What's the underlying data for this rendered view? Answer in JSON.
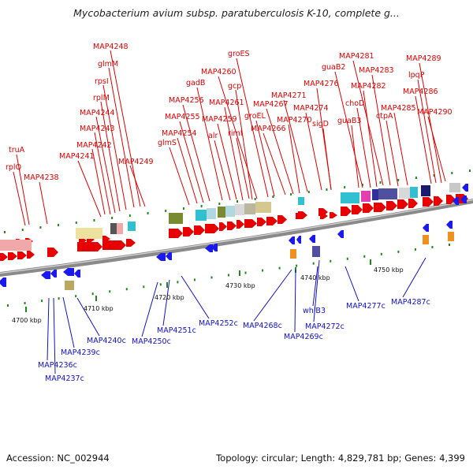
{
  "title": "Mycobacterium avium subsp. paratuberculosis K-10, complete g...",
  "footer": {
    "accession": "Accession: NC_002944",
    "summary": "Topology: circular; Length: 4,829,781 bp; Genes: 4,399"
  },
  "colors": {
    "forward_gene": "#e60000",
    "reverse_gene": "#1a1aee",
    "forward_label": "#e00000",
    "reverse_label": "#1010cc",
    "backbone": "#8a8a8a",
    "tick": "#1e8a1e"
  },
  "kbp_labels": [
    "4700 kbp",
    "4710 kbp",
    "4720 kbp",
    "4730 kbp",
    "4740 kbp",
    "4750 kbp"
  ],
  "top_labels": [
    "MAP4248",
    "glmM",
    "rpsI",
    "rplM",
    "MAP4244",
    "MAP4243",
    "MAP4242",
    "MAP4241",
    "MAP4249",
    "truA",
    "rplQ",
    "MAP4238",
    "groES",
    "MAP4260",
    "gadB",
    "gcp",
    "MAP4256",
    "MAP4261",
    "MAP4255",
    "MAP4259",
    "MAP4254",
    "glmS",
    "alr",
    "rimI",
    "MAP4271",
    "MAP4267",
    "groEL",
    "MAP4266",
    "MAP4270",
    "MAP4281",
    "guaB2",
    "MAP4283",
    "MAP4276",
    "MAP4282",
    "MAP4274",
    "choD",
    "sigD",
    "guaB3",
    "MAP4289",
    "lpqP",
    "MAP4286",
    "MAP4285",
    "ctpA",
    "MAP4290"
  ],
  "bottom_labels": [
    "MAP4240c",
    "MAP4239c",
    "MAP4236c",
    "MAP4237c",
    "MAP4250c",
    "MAP4251c",
    "MAP4252c",
    "MAP4268c",
    "MAP4269c",
    "whiB3",
    "MAP4272c",
    "MAP4277c",
    "MAP4287c"
  ]
}
